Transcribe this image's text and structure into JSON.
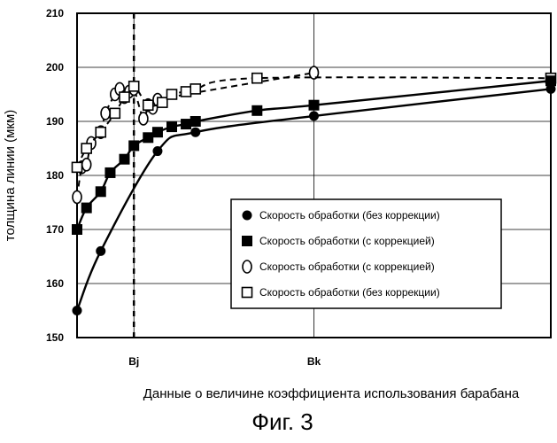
{
  "chart_data": {
    "type": "line",
    "title": "",
    "xlabel": "Данные о величине коэффициента использования барабана",
    "ylabel": "толщина линии (мкм)",
    "caption": "Фиг. 3",
    "xlim": [
      0,
      100
    ],
    "ylim": [
      150,
      210
    ],
    "yticks": [
      150,
      160,
      170,
      180,
      190,
      200,
      210
    ],
    "ytick_labels": [
      "150",
      "160",
      "170",
      "180",
      "190",
      "200",
      "210"
    ],
    "xticks": [
      {
        "label": "Bj",
        "value": 12
      },
      {
        "label": "Bk",
        "value": 50
      }
    ],
    "vline_x": 12,
    "grid": true,
    "legend_position": "lower-right",
    "series": [
      {
        "name": "Скорость обработки (без коррекции)",
        "marker": "filled-circle",
        "line": "solid",
        "x": [
          0,
          5,
          17,
          25,
          50,
          100
        ],
        "y": [
          155,
          166,
          184.5,
          188,
          191,
          196
        ]
      },
      {
        "name": "Скорость обработки (с коррекцией)",
        "marker": "filled-square",
        "line": "solid",
        "x": [
          0,
          2,
          5,
          7,
          10,
          12,
          15,
          17,
          20,
          23,
          25,
          38,
          50,
          100
        ],
        "y": [
          170,
          174,
          177,
          180.5,
          183,
          185.5,
          187,
          188,
          189,
          189.5,
          190,
          192,
          193,
          197.5
        ]
      },
      {
        "name": "Скорость обработки (с коррекцией)",
        "marker": "open-circle",
        "line": "dashed",
        "x": [
          0,
          1,
          2,
          3,
          5,
          6,
          8,
          9,
          10,
          11,
          12,
          14,
          15,
          16,
          17,
          50
        ],
        "y": [
          176,
          181.5,
          182,
          186,
          188,
          191.5,
          195,
          196,
          194.5,
          195.5,
          196,
          190.5,
          193,
          192.5,
          194,
          199
        ]
      },
      {
        "name": "Скорость обработки (без коррекции)",
        "marker": "open-square",
        "line": "dashed",
        "x": [
          0,
          2,
          5,
          8,
          10,
          12,
          15,
          18,
          20,
          23,
          25,
          38,
          100
        ],
        "y": [
          181.5,
          185,
          188,
          191.5,
          194.5,
          196.5,
          193,
          193.5,
          195,
          195.5,
          196,
          198,
          198
        ]
      }
    ]
  }
}
